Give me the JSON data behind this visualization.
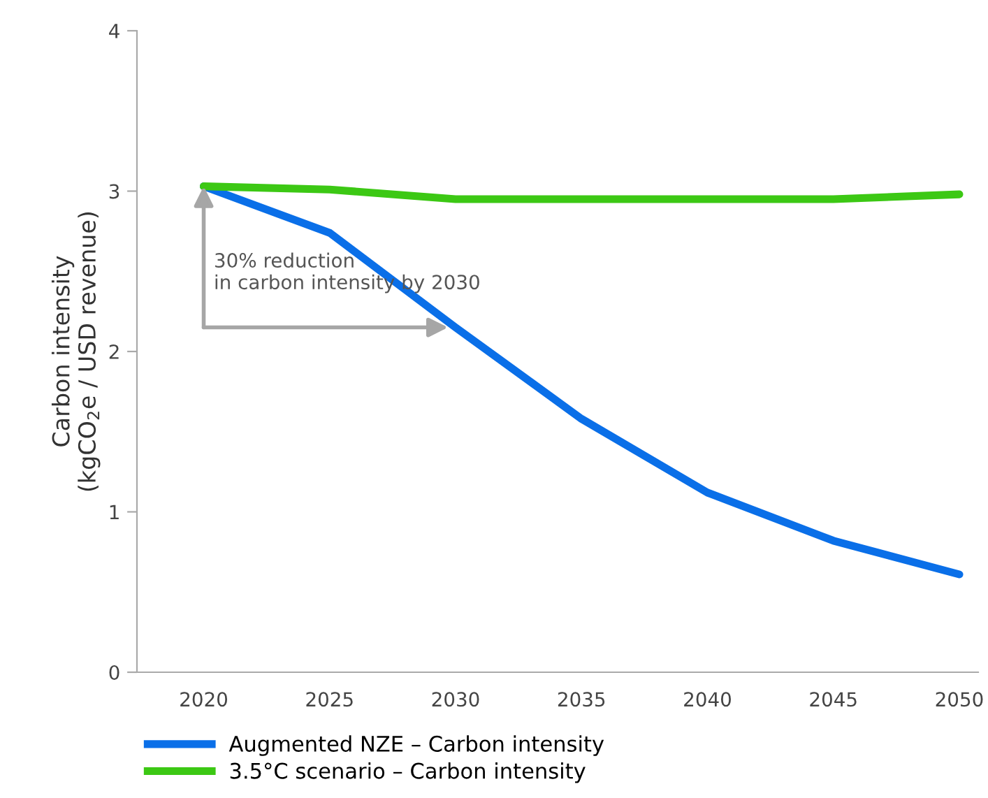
{
  "chart_data": {
    "type": "line",
    "ylabel": "Carbon intensity\n(kgCO$_{2}$e / USD revenue)",
    "categories": [
      "2020",
      "2025",
      "2030",
      "2035",
      "2040",
      "2045",
      "2050"
    ],
    "series": [
      {
        "name": "Augmented NZE – Carbon intensity",
        "color": "#0a6fe8",
        "values": [
          3.03,
          2.74,
          2.15,
          1.58,
          1.12,
          0.82,
          0.61
        ]
      },
      {
        "name": "3.5°C scenario – Carbon intensity",
        "color": "#3cc814",
        "values": [
          3.03,
          3.01,
          2.95,
          2.95,
          2.95,
          2.95,
          2.98
        ]
      }
    ],
    "ylim": [
      0,
      4
    ],
    "yticks": [
      0,
      1,
      2,
      3,
      4
    ],
    "grid": false,
    "legend": "bottom",
    "marker": "none",
    "line_style": "solid",
    "annotations": [
      {
        "text": "30% reduction\nin carbon intensity by 2030",
        "x": "2030",
        "y": 2.15
      }
    ]
  }
}
